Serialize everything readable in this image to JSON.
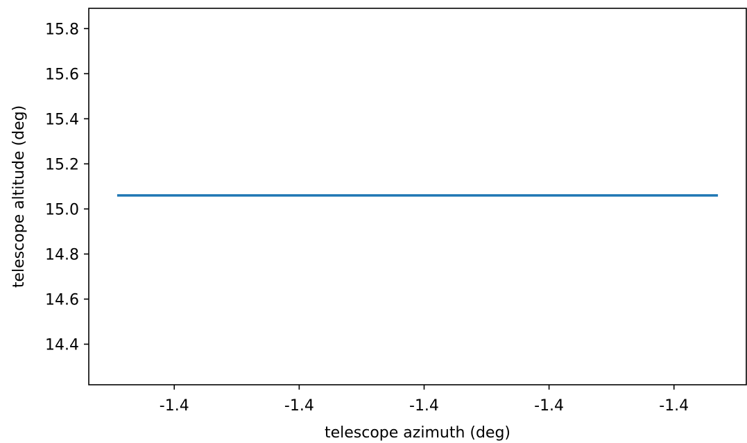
{
  "chart_data": {
    "type": "line",
    "title": "",
    "xlabel": "telescope azimuth (deg)",
    "ylabel": "telescope altitude (deg)",
    "xlim": [
      0,
      1
    ],
    "ylim": [
      14.22,
      15.89
    ],
    "xticks": [
      {
        "pos": 0.13,
        "label": "-1.4"
      },
      {
        "pos": 0.32,
        "label": "-1.4"
      },
      {
        "pos": 0.51,
        "label": "-1.4"
      },
      {
        "pos": 0.7,
        "label": "-1.4"
      },
      {
        "pos": 0.89,
        "label": "-1.4"
      }
    ],
    "yticks": [
      {
        "value": 14.4,
        "label": "14.4"
      },
      {
        "value": 14.6,
        "label": "14.6"
      },
      {
        "value": 14.8,
        "label": "14.8"
      },
      {
        "value": 15.0,
        "label": "15.0"
      },
      {
        "value": 15.2,
        "label": "15.2"
      },
      {
        "value": 15.4,
        "label": "15.4"
      },
      {
        "value": 15.6,
        "label": "15.6"
      },
      {
        "value": 15.8,
        "label": "15.8"
      }
    ],
    "series": [
      {
        "color": "#1f77b4",
        "x": [
          0.045,
          0.955
        ],
        "y": [
          15.06,
          15.06
        ]
      }
    ],
    "grid": false
  }
}
